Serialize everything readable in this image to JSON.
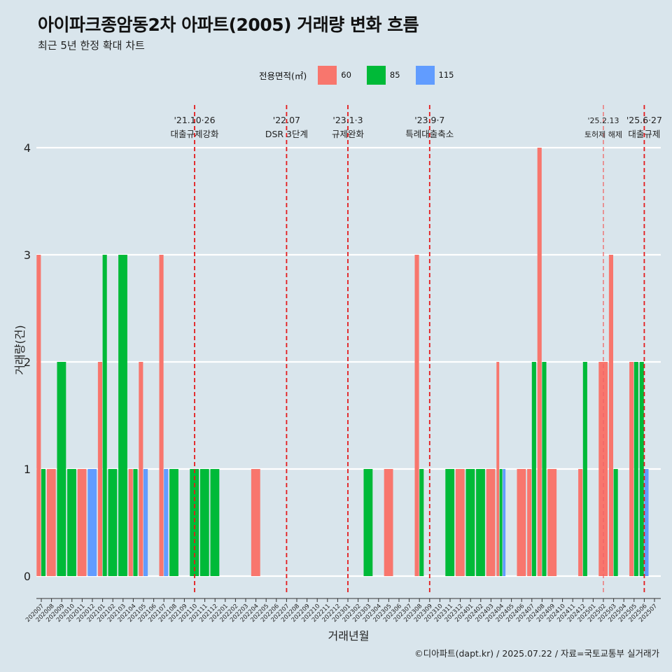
{
  "title": "아이파크종암동2차 아파트(2005) 거래량 변화 흐름",
  "subtitle": "최근 5년 한정 확대 차트",
  "caption": "©디아파트(dapt.kr) / 2025.07.22 / 자료=국토교통부 실거래가",
  "legend": {
    "title": "전용면적(㎡)",
    "items": [
      {
        "label": "60",
        "color": "#F8766D"
      },
      {
        "label": "85",
        "color": "#00BA38"
      },
      {
        "label": "115",
        "color": "#619CFF"
      }
    ]
  },
  "chart_data": {
    "type": "bar",
    "xlabel": "거래년월",
    "ylabel": "거래량(건)",
    "ylim": [
      0,
      4
    ],
    "yticks": [
      0,
      1,
      2,
      3,
      4
    ],
    "grid": "horizontal",
    "legend_position": "top",
    "categories": [
      "202007",
      "202008",
      "202009",
      "202010",
      "202011",
      "202012",
      "202101",
      "202102",
      "202103",
      "202104",
      "202105",
      "202106",
      "202107",
      "202108",
      "202109",
      "202110",
      "202111",
      "202112",
      "202201",
      "202202",
      "202203",
      "202204",
      "202205",
      "202206",
      "202207",
      "202208",
      "202209",
      "202210",
      "202211",
      "202212",
      "202301",
      "202302",
      "202303",
      "202304",
      "202305",
      "202306",
      "202307",
      "202308",
      "202309",
      "202310",
      "202311",
      "202312",
      "202401",
      "202402",
      "202403",
      "202404",
      "202405",
      "202406",
      "202407",
      "202408",
      "202409",
      "202410",
      "202411",
      "202412",
      "202501",
      "202502",
      "202503",
      "202504",
      "202505",
      "202506",
      "202507"
    ],
    "series": [
      {
        "name": "60",
        "color": "#F8766D",
        "values": [
          3,
          1,
          0,
          0,
          1,
          0,
          2,
          0,
          0,
          1,
          2,
          0,
          3,
          0,
          0,
          0,
          0,
          0,
          0,
          0,
          0,
          1,
          0,
          0,
          0,
          0,
          0,
          0,
          0,
          0,
          0,
          0,
          0,
          0,
          1,
          0,
          0,
          3,
          0,
          0,
          0,
          1,
          0,
          0,
          1,
          2,
          0,
          1,
          1,
          4,
          1,
          0,
          0,
          1,
          0,
          2,
          3,
          0,
          2,
          0,
          0
        ]
      },
      {
        "name": "85",
        "color": "#00BA38",
        "values": [
          1,
          0,
          2,
          1,
          0,
          0,
          3,
          1,
          3,
          1,
          0,
          0,
          0,
          1,
          0,
          1,
          1,
          1,
          0,
          0,
          0,
          0,
          0,
          0,
          0,
          0,
          0,
          0,
          0,
          0,
          0,
          0,
          1,
          0,
          0,
          0,
          0,
          1,
          0,
          0,
          1,
          0,
          1,
          1,
          0,
          1,
          0,
          0,
          2,
          2,
          0,
          0,
          0,
          2,
          0,
          0,
          1,
          0,
          2,
          2,
          0
        ]
      },
      {
        "name": "115",
        "color": "#619CFF",
        "values": [
          0,
          0,
          0,
          0,
          0,
          1,
          0,
          0,
          0,
          0,
          1,
          0,
          1,
          0,
          0,
          0,
          0,
          0,
          0,
          0,
          0,
          0,
          0,
          0,
          0,
          0,
          0,
          0,
          0,
          0,
          0,
          0,
          0,
          0,
          0,
          0,
          0,
          0,
          0,
          0,
          0,
          0,
          0,
          0,
          0,
          1,
          0,
          0,
          0,
          0,
          0,
          0,
          0,
          0,
          0,
          0,
          0,
          0,
          0,
          1,
          0
        ]
      }
    ],
    "annotations": [
      {
        "x": "202110",
        "line1": "'21.10·26",
        "line2": "대출규제강화"
      },
      {
        "x": "202207",
        "line1": "'22.07",
        "line2": "DSR 3단계"
      },
      {
        "x": "202301",
        "line1": "'23.1·3",
        "line2": "규제완화"
      },
      {
        "x": "202309",
        "line1": "'23.9·7",
        "line2": "특례대출축소"
      },
      {
        "x": "202502",
        "line1": "'25.2.13",
        "line2": "토허제 해제"
      },
      {
        "x": "202506",
        "line1": "'25.6·27",
        "line2": "대출규제"
      }
    ]
  }
}
